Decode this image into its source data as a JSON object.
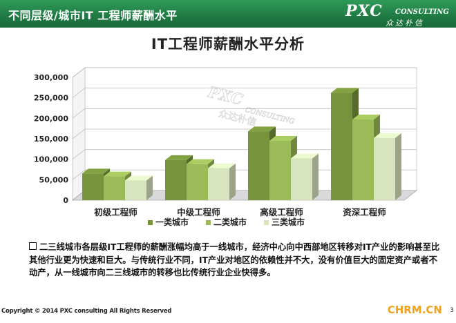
{
  "header": {
    "title": "不同层级/城市IT 工程师薪酬水平"
  },
  "logo": {
    "main": "PXC",
    "sub": "CONSULTING",
    "cn": "众达朴信"
  },
  "chart_data": {
    "type": "bar",
    "title": "IT工程师薪酬水平分析",
    "categories": [
      "初级工程师",
      "中级工程师",
      "高级工程师",
      "资深工程师"
    ],
    "series": [
      {
        "name": "一类城市",
        "values": [
          65000,
          98000,
          168000,
          262000
        ]
      },
      {
        "name": "二类城市",
        "values": [
          58000,
          88000,
          145000,
          197000
        ]
      },
      {
        "name": "三类城市",
        "values": [
          48000,
          78000,
          102000,
          152000
        ]
      }
    ],
    "y_ticks": [
      "0",
      "50,000",
      "100,000",
      "150,000",
      "200,000",
      "250,000",
      "300,000"
    ],
    "ylim": [
      0,
      300000
    ],
    "grid": true,
    "legend": "bottom",
    "colors": [
      "#77933c",
      "#9bbb59",
      "#d7e4bd"
    ],
    "watermark": {
      "main": "PXC",
      "sub": "CONSULTING",
      "cn": "众达朴信"
    }
  },
  "note": "二三线城市各层级IT工程师的薪酬涨幅均高于一线城市，经济中心向中西部地区转移对IT产业的影响甚至比其他行业更为快速和巨大。与传统行业不同，IT产业对地区的依赖性并不大，没有价值巨大的固定资产或者不动产，从一线城市向二三线城市的转移也比传统行业企业快得多。",
  "footer": {
    "copyright": "Copyright © 2014  PXC consulting All Rights Reserved",
    "site": "CHRM.CN",
    "page": "3"
  }
}
